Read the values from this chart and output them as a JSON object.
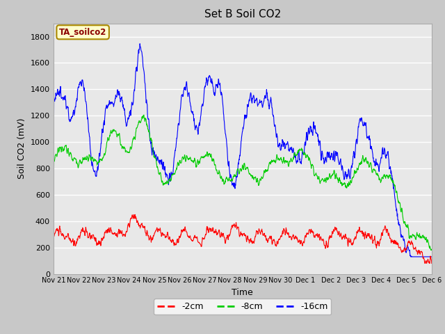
{
  "title": "Set B Soil CO2",
  "xlabel": "Time",
  "ylabel": "Soil CO2 (mV)",
  "ylim": [
    0,
    1900
  ],
  "yticks": [
    0,
    200,
    400,
    600,
    800,
    1000,
    1200,
    1400,
    1600,
    1800
  ],
  "colors": {
    "red": "#ff0000",
    "green": "#00cc00",
    "blue": "#0000ff"
  },
  "legend_labels": [
    "-2cm",
    "-8cm",
    "-16cm"
  ],
  "annotation_text": "TA_soilco2",
  "annotation_bg": "#ffffcc",
  "annotation_border": "#aa8800",
  "fig_bg": "#c8c8c8",
  "plot_bg": "#e8e8e8",
  "x_tick_labels": [
    "Nov 21",
    "Nov 22",
    "Nov 23",
    "Nov 24",
    "Nov 25",
    "Nov 26",
    "Nov 27",
    "Nov 28",
    "Nov 29",
    "Nov 30",
    "Dec 1",
    "Dec 2",
    "Dec 3",
    "Dec 4",
    "Dec 5",
    "Dec 6"
  ],
  "num_points": 1440
}
